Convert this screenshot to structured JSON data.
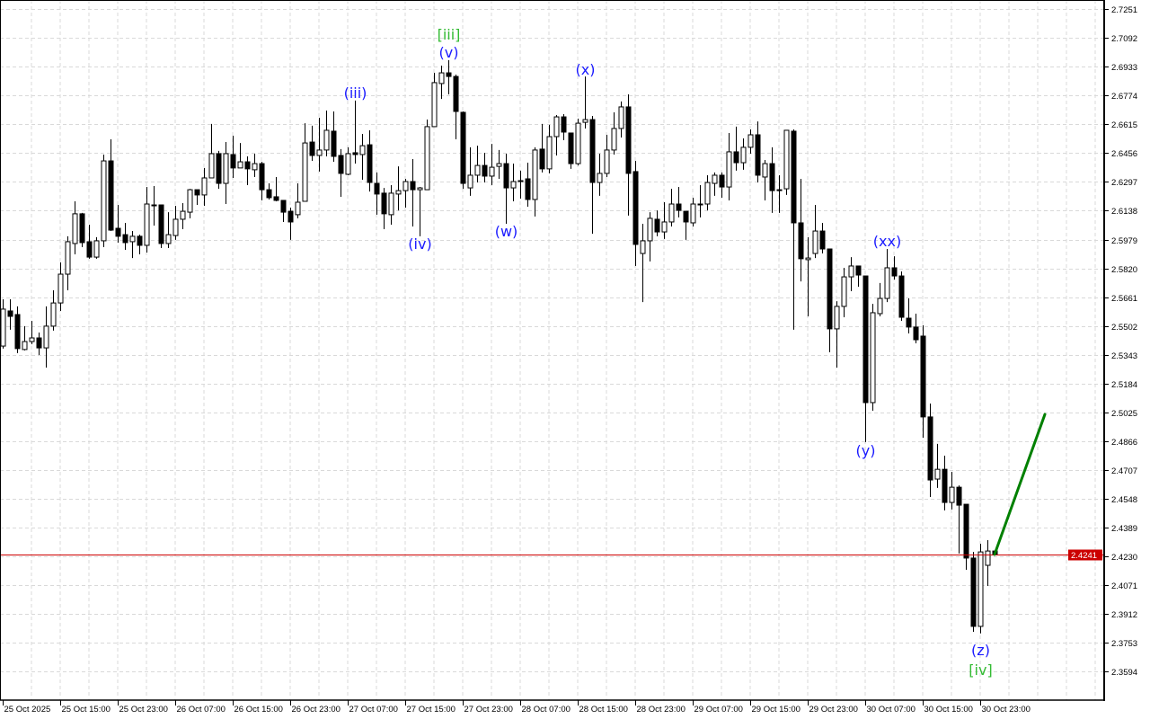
{
  "chart_data": {
    "type": "candlestick",
    "title": "",
    "start": "2025-10-25 07:00",
    "interval_hours": 1,
    "ylim": [
      2.3437,
      2.7301
    ],
    "grid": true,
    "price_ticks": [
      "2.7251",
      "2.7092",
      "2.6933",
      "2.6774",
      "2.6615",
      "2.6456",
      "2.6297",
      "2.6138",
      "2.5979",
      "2.5820",
      "2.5661",
      "2.5502",
      "2.5343",
      "2.5184",
      "2.5025",
      "2.4866",
      "2.4707",
      "2.4548",
      "2.4389",
      "2.4230",
      "2.4071",
      "2.3912",
      "2.3753",
      "2.3594"
    ],
    "time_ticks": [
      "25 Oct 2025",
      "25 Oct 15:00",
      "25 Oct 23:00",
      "26 Oct 07:00",
      "26 Oct 15:00",
      "26 Oct 23:00",
      "27 Oct 07:00",
      "27 Oct 15:00",
      "27 Oct 23:00",
      "28 Oct 07:00",
      "28 Oct 15:00",
      "28 Oct 23:00",
      "29 Oct 07:00",
      "29 Oct 15:00",
      "29 Oct 23:00",
      "30 Oct 07:00",
      "30 Oct 15:00",
      "30 Oct 23:00"
    ],
    "current_price": {
      "value": 2.4241,
      "label": "2.4241",
      "color": "#cc0000"
    },
    "colors": {
      "bull_body": "#ffffff",
      "bear_body": "#000000",
      "outline": "#000000",
      "grid": "#d9d9d9",
      "forecast": "#008000"
    },
    "candles": [
      [
        2.5391,
        2.5649,
        2.5377,
        2.5595
      ],
      [
        2.5585,
        2.5649,
        2.5481,
        2.5555
      ],
      [
        2.5565,
        2.561,
        2.5352,
        2.5377
      ],
      [
        2.5372,
        2.5501,
        2.5367,
        2.5416
      ],
      [
        2.5416,
        2.553,
        2.5401,
        2.5436
      ],
      [
        2.5436,
        2.5466,
        2.5342,
        2.5381
      ],
      [
        2.5381,
        2.561,
        2.5272,
        2.5501
      ],
      [
        2.5501,
        2.5699,
        2.5476,
        2.5629
      ],
      [
        2.5629,
        2.5853,
        2.5585,
        2.5788
      ],
      [
        2.5788,
        2.5997,
        2.5699,
        2.5967
      ],
      [
        2.5957,
        2.619,
        2.5897,
        2.6121
      ],
      [
        2.6121,
        2.6126,
        2.5937,
        2.5962
      ],
      [
        2.5967,
        2.6061,
        2.5873,
        2.5882
      ],
      [
        2.5882,
        2.5992,
        2.5873,
        2.5972
      ],
      [
        2.5972,
        2.6448,
        2.5937,
        2.6413
      ],
      [
        2.6413,
        2.6532,
        2.6026,
        2.6031
      ],
      [
        2.6041,
        2.617,
        2.5962,
        2.5997
      ],
      [
        2.6006,
        2.6071,
        2.5922,
        2.5962
      ],
      [
        2.5967,
        2.6026,
        2.5877,
        2.5997
      ],
      [
        2.5997,
        2.6006,
        2.5897,
        2.5947
      ],
      [
        2.5947,
        2.6269,
        2.5907,
        2.6175
      ],
      [
        2.617,
        2.6274,
        2.6056,
        2.617
      ],
      [
        2.617,
        2.617,
        2.5932,
        2.5957
      ],
      [
        2.5957,
        2.613,
        2.5932,
        2.6006
      ],
      [
        2.6001,
        2.6165,
        2.5977,
        2.6091
      ],
      [
        2.6091,
        2.618,
        2.6036,
        2.6135
      ],
      [
        2.613,
        2.6259,
        2.6096,
        2.6254
      ],
      [
        2.6254,
        2.6254,
        2.617,
        2.6225
      ],
      [
        2.6225,
        2.6374,
        2.6165,
        2.6319
      ],
      [
        2.6319,
        2.6617,
        2.6319,
        2.6453
      ],
      [
        2.6453,
        2.6468,
        2.6259,
        2.6289
      ],
      [
        2.6289,
        2.6517,
        2.6175,
        2.6453
      ],
      [
        2.6448,
        2.6552,
        2.6319,
        2.6374
      ],
      [
        2.6374,
        2.6512,
        2.6374,
        2.6408
      ],
      [
        2.6408,
        2.6438,
        2.6279,
        2.6369
      ],
      [
        2.6364,
        2.6453,
        2.6324,
        2.6398
      ],
      [
        2.6398,
        2.6408,
        2.6195,
        2.6254
      ],
      [
        2.6254,
        2.6289,
        2.62,
        2.621
      ],
      [
        2.6215,
        2.6324,
        2.619,
        2.6195
      ],
      [
        2.6195,
        2.6195,
        2.6076,
        2.613
      ],
      [
        2.6135,
        2.6155,
        2.5977,
        2.6076
      ],
      [
        2.6116,
        2.6289,
        2.6096,
        2.6185
      ],
      [
        2.619,
        2.6621,
        2.619,
        2.6512
      ],
      [
        2.6517,
        2.6607,
        2.6413,
        2.6443
      ],
      [
        2.6443,
        2.6651,
        2.6354,
        2.6473
      ],
      [
        2.6473,
        2.6691,
        2.6438,
        2.6582
      ],
      [
        2.6577,
        2.6686,
        2.6408,
        2.6438
      ],
      [
        2.6443,
        2.6478,
        2.6215,
        2.6344
      ],
      [
        2.6339,
        2.6488,
        2.6334,
        2.6453
      ],
      [
        2.6458,
        2.6746,
        2.6398,
        2.6448
      ],
      [
        2.6448,
        2.6562,
        2.6309,
        2.6497
      ],
      [
        2.6502,
        2.6582,
        2.6244,
        2.6294
      ],
      [
        2.6289,
        2.6349,
        2.6116,
        2.623
      ],
      [
        2.6235,
        2.6264,
        2.6036,
        2.6121
      ],
      [
        2.6116,
        2.6279,
        2.6061,
        2.6235
      ],
      [
        2.623,
        2.6383,
        2.614,
        2.6249
      ],
      [
        2.6249,
        2.6314,
        2.6155,
        2.6299
      ],
      [
        2.6299,
        2.6423,
        2.6051,
        2.6254
      ],
      [
        2.6254,
        2.6269,
        2.5997,
        2.6264
      ],
      [
        2.6254,
        2.6641,
        2.6254,
        2.6602
      ],
      [
        2.6602,
        2.6899,
        2.6602,
        2.6845
      ],
      [
        2.684,
        2.6939,
        2.6755,
        2.6899
      ],
      [
        2.6899,
        2.6969,
        2.678,
        2.6879
      ],
      [
        2.6879,
        2.6889,
        2.6532,
        2.6686
      ],
      [
        2.6681,
        2.6686,
        2.6259,
        2.6289
      ],
      [
        2.6264,
        2.6488,
        2.622,
        2.6334
      ],
      [
        2.6334,
        2.6497,
        2.6294,
        2.6388
      ],
      [
        2.6388,
        2.6458,
        2.6294,
        2.6329
      ],
      [
        2.6329,
        2.6507,
        2.6279,
        2.6378
      ],
      [
        2.6383,
        2.6473,
        2.6314,
        2.6398
      ],
      [
        2.6398,
        2.6453,
        2.6066,
        2.6264
      ],
      [
        2.6264,
        2.6398,
        2.619,
        2.6299
      ],
      [
        2.6304,
        2.6359,
        2.6205,
        2.6304
      ],
      [
        2.6314,
        2.6403,
        2.616,
        2.62
      ],
      [
        2.62,
        2.6488,
        2.6106,
        2.6473
      ],
      [
        2.6478,
        2.6617,
        2.6349,
        2.6369
      ],
      [
        2.6369,
        2.6612,
        2.6344,
        2.6547
      ],
      [
        2.6547,
        2.6666,
        2.6443,
        2.6656
      ],
      [
        2.6656,
        2.6671,
        2.6527,
        2.6572
      ],
      [
        2.6567,
        2.6567,
        2.6369,
        2.6398
      ],
      [
        2.6398,
        2.6646,
        2.6388,
        2.6621
      ],
      [
        2.6626,
        2.6879,
        2.6592,
        2.6641
      ],
      [
        2.6641,
        2.6661,
        2.6011,
        2.6294
      ],
      [
        2.6294,
        2.6453,
        2.622,
        2.6344
      ],
      [
        2.6344,
        2.6557,
        2.6324,
        2.6473
      ],
      [
        2.6473,
        2.6681,
        2.6448,
        2.6592
      ],
      [
        2.6592,
        2.6741,
        2.6542,
        2.6711
      ],
      [
        2.6711,
        2.678,
        2.6111,
        2.6344
      ],
      [
        2.6354,
        2.6413,
        2.5833,
        2.5952
      ],
      [
        2.5902,
        2.6066,
        2.5634,
        2.5972
      ],
      [
        2.5972,
        2.613,
        2.5858,
        2.6096
      ],
      [
        2.6091,
        2.614,
        2.5997,
        2.6021
      ],
      [
        2.6021,
        2.6185,
        2.5982,
        2.6076
      ],
      [
        2.6076,
        2.6259,
        2.6051,
        2.6175
      ],
      [
        2.6175,
        2.6269,
        2.6101,
        2.614
      ],
      [
        2.6135,
        2.6135,
        2.5977,
        2.6076
      ],
      [
        2.6071,
        2.621,
        2.6051,
        2.6175
      ],
      [
        2.6175,
        2.6279,
        2.6101,
        2.6175
      ],
      [
        2.6175,
        2.6334,
        2.614,
        2.6294
      ],
      [
        2.6289,
        2.6349,
        2.622,
        2.6334
      ],
      [
        2.6334,
        2.6349,
        2.621,
        2.6269
      ],
      [
        2.6269,
        2.6567,
        2.6195,
        2.6463
      ],
      [
        2.6463,
        2.6602,
        2.6359,
        2.6403
      ],
      [
        2.6403,
        2.6537,
        2.6364,
        2.6488
      ],
      [
        2.6488,
        2.6587,
        2.6453,
        2.6557
      ],
      [
        2.6557,
        2.6631,
        2.6294,
        2.6334
      ],
      [
        2.6324,
        2.6418,
        2.6195,
        2.6398
      ],
      [
        2.6398,
        2.6488,
        2.6126,
        2.6249
      ],
      [
        2.6254,
        2.6334,
        2.6126,
        2.6254
      ],
      [
        2.6259,
        2.6582,
        2.6225,
        2.6582
      ],
      [
        2.6577,
        2.6587,
        2.5481,
        2.6071
      ],
      [
        2.6071,
        2.6314,
        2.5748,
        2.5873
      ],
      [
        2.5868,
        2.5992,
        2.5555,
        2.5877
      ],
      [
        2.5902,
        2.617,
        2.5877,
        2.6026
      ],
      [
        2.6026,
        2.6071,
        2.5902,
        2.5927
      ],
      [
        2.5927,
        2.5927,
        2.5357,
        2.5486
      ],
      [
        2.5486,
        2.5639,
        2.5272,
        2.561
      ],
      [
        2.561,
        2.5823,
        2.555,
        2.5773
      ],
      [
        2.5773,
        2.5882,
        2.5694,
        2.5833
      ],
      [
        2.5833,
        2.5833,
        2.5718,
        2.5783
      ],
      [
        2.5778,
        2.5778,
        2.4861,
        2.5079
      ],
      [
        2.5079,
        2.5624,
        2.5034,
        2.5575
      ],
      [
        2.557,
        2.5739,
        2.5555,
        2.5654
      ],
      [
        2.5654,
        2.5927,
        2.5634,
        2.5823
      ],
      [
        2.5823,
        2.5887,
        2.5758,
        2.5778
      ],
      [
        2.5778,
        2.5803,
        2.553,
        2.555
      ],
      [
        2.5545,
        2.5654,
        2.5461,
        2.5496
      ],
      [
        2.5496,
        2.557,
        2.5406,
        2.5426
      ],
      [
        2.5446,
        2.5506,
        2.4885,
        2.5
      ],
      [
        2.5,
        2.5074,
        2.4558,
        2.4652
      ],
      [
        2.4657,
        2.4851,
        2.4608,
        2.4711
      ],
      [
        2.4711,
        2.4786,
        2.4484,
        2.4528
      ],
      [
        2.4528,
        2.4697,
        2.4489,
        2.4612
      ],
      [
        2.4612,
        2.4622,
        2.4246,
        2.4513
      ],
      [
        2.4518,
        2.4518,
        2.4156,
        2.4221
      ],
      [
        2.4221,
        2.4255,
        2.3814,
        2.3844
      ],
      [
        2.3844,
        2.43,
        2.3805,
        2.4255
      ],
      [
        2.4181,
        2.432,
        2.4067,
        2.426
      ],
      [
        2.426,
        2.426,
        2.4241,
        2.4241
      ]
    ],
    "annotations": [
      {
        "text": "[iii]",
        "time": "2025-10-27 21:00",
        "price": 2.7113,
        "color": "#33bb33"
      },
      {
        "text": "(v)",
        "time": "2025-10-27 21:00",
        "price": 2.7013,
        "color": "#1a1aff"
      },
      {
        "text": "(iii)",
        "time": "2025-10-27 08:00",
        "price": 2.679,
        "color": "#1a1aff"
      },
      {
        "text": "(iv)",
        "time": "2025-10-27 17:00",
        "price": 2.5957,
        "color": "#1a1aff"
      },
      {
        "text": "(w)",
        "time": "2025-10-28 05:00",
        "price": 2.6026,
        "color": "#1a1aff"
      },
      {
        "text": "(x)",
        "time": "2025-10-28 16:00",
        "price": 2.6919,
        "color": "#1a1aff"
      },
      {
        "text": "(y)",
        "time": "2025-10-30 07:00",
        "price": 2.4816,
        "color": "#1a1aff"
      },
      {
        "text": "(xx)",
        "time": "2025-10-30 10:00",
        "price": 2.5972,
        "color": "#1a1aff"
      },
      {
        "text": "(z)",
        "time": "2025-10-30 23:00",
        "price": 2.3715,
        "color": "#1a1aff"
      },
      {
        "text": "[iv]",
        "time": "2025-10-30 23:00",
        "price": 2.3606,
        "color": "#33bb33"
      }
    ],
    "forecast_line": {
      "from": {
        "time": "2025-10-31 01:00",
        "price": 2.4241
      },
      "to": {
        "time": "2025-10-31 08:00",
        "price": 2.5014
      }
    }
  }
}
